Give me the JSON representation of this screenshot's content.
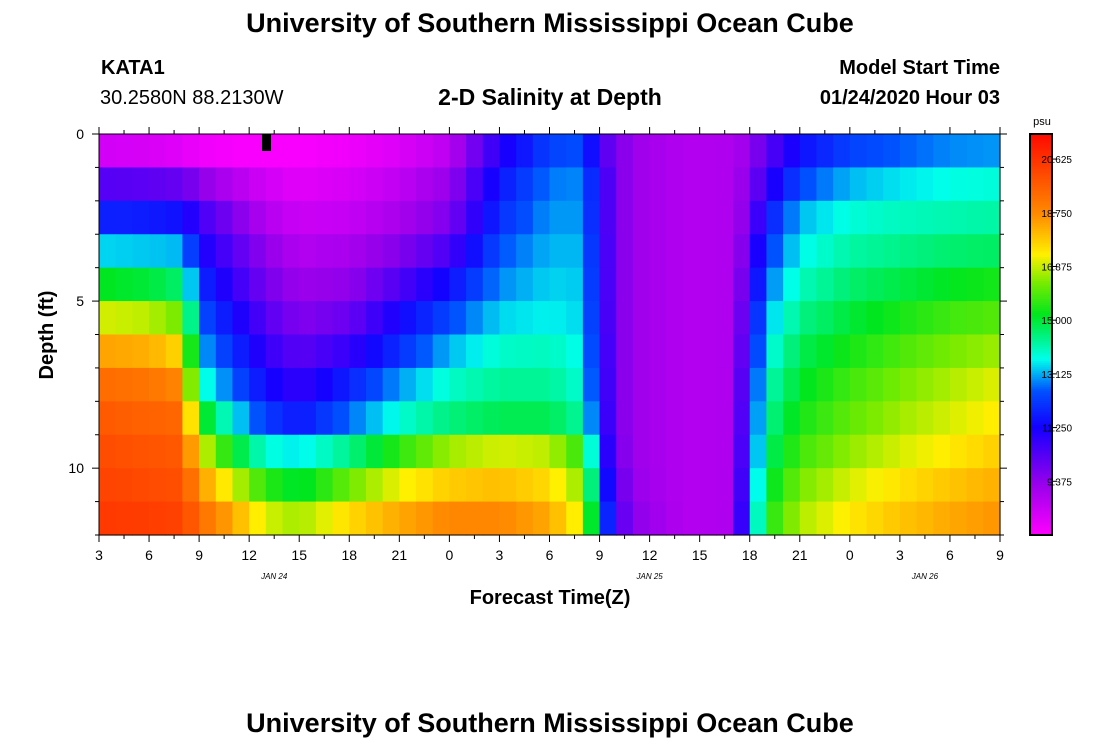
{
  "header": {
    "title": "University of Southern Mississippi Ocean Cube",
    "station": "KATA1",
    "coords": "30.2580N 88.2130W",
    "plot_title": "2-D Salinity at Depth",
    "model_start_label": "Model Start Time",
    "model_start_value": "01/24/2020 Hour 03"
  },
  "footer": {
    "title": "University of Southern Mississippi Ocean Cube"
  },
  "chart_data": {
    "type": "heatmap",
    "title": "2-D Salinity at Depth",
    "xlabel": "Forecast Time(Z)",
    "ylabel": "Depth (ft)",
    "x_tick_labels": [
      "3",
      "6",
      "9",
      "12",
      "15",
      "18",
      "21",
      "0",
      "3",
      "6",
      "9",
      "12",
      "15",
      "18",
      "21",
      "0",
      "3",
      "6",
      "9"
    ],
    "date_labels": [
      {
        "text": "JAN 24",
        "hour_offset": 10.5
      },
      {
        "text": "JAN 25",
        "hour_offset": 33
      },
      {
        "text": "JAN 26",
        "hour_offset": 49.5
      }
    ],
    "x_range_hours": [
      0,
      54
    ],
    "y_ticks": [
      0,
      5,
      10
    ],
    "y_range": [
      0,
      12
    ],
    "colorbar": {
      "unit": "psu",
      "ticks": [
        9.375,
        11.25,
        13.125,
        15.0,
        16.875,
        18.75,
        20.625
      ],
      "tick_labels": [
        "9.375",
        "11.250",
        "13.125",
        "15.000",
        "16.875",
        "18.750",
        "20.625"
      ],
      "min": 7.5,
      "max": 21.5
    },
    "depth_levels_ft": [
      0.5,
      1.5,
      2.5,
      3.5,
      4.5,
      5.5,
      6.5,
      7.5,
      8.5,
      9.5,
      10.5,
      11.5
    ],
    "time_keyframes_hours": [
      0,
      3,
      5,
      6,
      8,
      10,
      12,
      15,
      18,
      21,
      24,
      27,
      29,
      30,
      31,
      32,
      35,
      38,
      39,
      40,
      42,
      45,
      48,
      51,
      54
    ],
    "salinity_psu": [
      [
        8.3,
        8.2,
        8.0,
        7.8,
        7.6,
        7.6,
        7.6,
        7.8,
        8.1,
        8.7,
        11.0,
        12.3,
        12.5,
        10.5,
        9.8,
        9.2,
        8.8,
        8.9,
        9.3,
        10.2,
        11.5,
        12.3,
        12.6,
        12.9,
        13.0
      ],
      [
        10.3,
        10.2,
        10.0,
        9.5,
        8.8,
        8.3,
        8.0,
        8.2,
        8.6,
        9.3,
        11.6,
        12.8,
        12.9,
        11.0,
        9.8,
        9.2,
        8.8,
        8.9,
        9.6,
        10.8,
        12.4,
        13.2,
        13.5,
        13.7,
        13.8
      ],
      [
        11.8,
        11.7,
        11.5,
        10.6,
        9.7,
        8.8,
        8.4,
        8.5,
        9.0,
        9.7,
        12.0,
        13.0,
        13.0,
        11.0,
        9.8,
        9.2,
        8.8,
        8.9,
        9.8,
        11.6,
        13.2,
        13.8,
        14.0,
        14.1,
        14.2
      ],
      [
        13.4,
        13.3,
        13.2,
        11.3,
        10.3,
        9.4,
        8.8,
        9.0,
        9.6,
        10.5,
        12.5,
        13.2,
        13.2,
        11.1,
        9.8,
        9.2,
        8.8,
        8.9,
        10.2,
        12.2,
        13.6,
        14.2,
        14.4,
        14.6,
        14.7
      ],
      [
        15.2,
        15.0,
        14.6,
        12.0,
        10.8,
        9.8,
        9.2,
        9.4,
        10.4,
        11.5,
        12.9,
        13.4,
        13.3,
        11.1,
        9.8,
        9.2,
        8.8,
        8.9,
        10.6,
        12.7,
        14.0,
        14.6,
        14.9,
        15.2,
        15.4
      ],
      [
        17.0,
        16.8,
        16.2,
        12.6,
        11.4,
        10.3,
        9.6,
        10.0,
        11.3,
        12.4,
        13.4,
        13.6,
        13.4,
        11.2,
        9.8,
        9.2,
        8.8,
        8.9,
        11.0,
        13.2,
        14.4,
        15.0,
        15.4,
        15.8,
        16.0
      ],
      [
        18.4,
        18.2,
        17.6,
        13.2,
        12.0,
        10.8,
        10.2,
        10.8,
        12.0,
        13.2,
        13.9,
        14.0,
        13.6,
        11.3,
        9.8,
        9.2,
        8.8,
        8.9,
        11.3,
        13.6,
        14.8,
        15.4,
        15.9,
        16.3,
        16.6
      ],
      [
        19.4,
        19.2,
        18.8,
        14.0,
        12.6,
        11.4,
        10.8,
        11.8,
        13.0,
        13.9,
        14.3,
        14.3,
        13.8,
        11.4,
        9.8,
        9.2,
        8.8,
        8.9,
        11.6,
        14.0,
        15.1,
        15.8,
        16.3,
        16.7,
        17.1
      ],
      [
        19.8,
        19.6,
        19.5,
        15.5,
        13.6,
        12.2,
        11.6,
        12.7,
        13.8,
        14.5,
        14.8,
        14.8,
        14.2,
        11.6,
        9.8,
        9.2,
        8.8,
        8.9,
        11.8,
        14.3,
        15.4,
        16.1,
        16.6,
        17.0,
        17.4
      ],
      [
        20.1,
        19.9,
        19.8,
        17.2,
        15.2,
        13.8,
        13.5,
        14.4,
        15.6,
        16.6,
        17.0,
        16.8,
        15.6,
        12.0,
        9.9,
        9.2,
        8.8,
        8.9,
        12.0,
        14.6,
        15.8,
        16.5,
        17.0,
        17.4,
        17.8
      ],
      [
        20.3,
        20.1,
        20.0,
        18.6,
        17.0,
        15.6,
        15.0,
        16.2,
        17.2,
        17.8,
        18.0,
        17.6,
        16.4,
        12.6,
        10.2,
        9.3,
        8.8,
        8.9,
        12.3,
        15.0,
        16.3,
        17.0,
        17.5,
        17.9,
        18.2
      ],
      [
        20.5,
        20.4,
        20.3,
        19.4,
        18.3,
        17.0,
        16.6,
        17.6,
        18.3,
        18.8,
        18.8,
        18.3,
        17.0,
        13.2,
        10.5,
        9.5,
        8.8,
        8.9,
        12.6,
        15.4,
        16.7,
        17.4,
        17.9,
        18.3,
        18.6
      ]
    ]
  }
}
